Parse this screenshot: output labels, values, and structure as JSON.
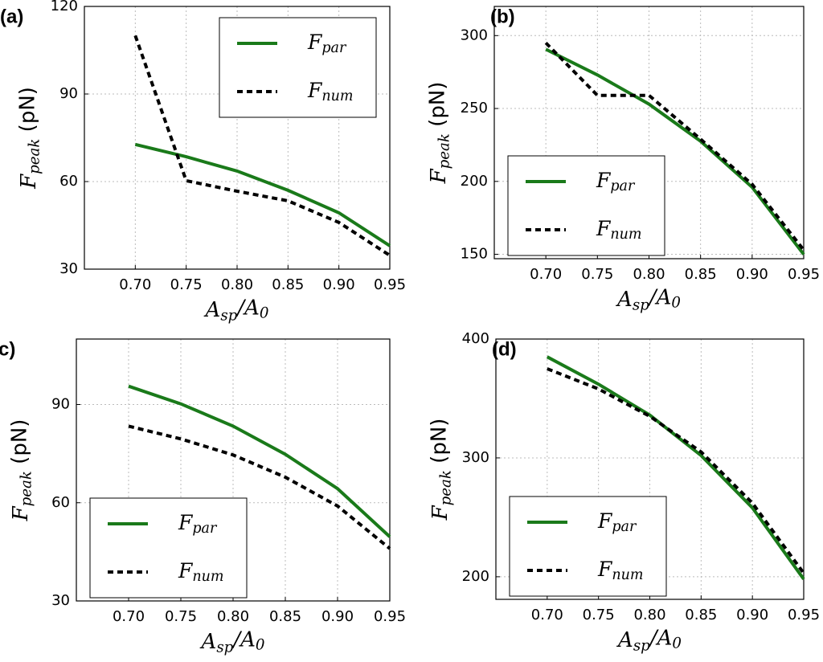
{
  "chart_data": [
    {
      "type": "line",
      "panel_label": "(a)",
      "xlabel": "Asp/A0",
      "ylabel": "Fpeak (pN)",
      "x": [
        0.7,
        0.75,
        0.8,
        0.85,
        0.9,
        0.95
      ],
      "xlim": [
        0.65,
        0.95
      ],
      "xticks": [
        {
          "value": 0.7,
          "label": "0.70"
        },
        0.75,
        {
          "value": 0.8,
          "label": "0.80"
        },
        0.85,
        {
          "value": 0.9,
          "label": "0.90"
        },
        0.95
      ],
      "ylim": [
        30,
        120
      ],
      "yticks": [
        30,
        60,
        90,
        120
      ],
      "grid": true,
      "legend": "upper right",
      "series": [
        {
          "name": "Fpar",
          "color": "#1a7a1a",
          "linestyle": "solid",
          "values": [
            72.7,
            68.5,
            63.6,
            57,
            49.3,
            38
          ]
        },
        {
          "name": "Fnum",
          "color": "#000000",
          "linestyle": "dashed",
          "values": [
            110,
            60.3,
            56.7,
            53.4,
            46,
            34.7
          ]
        }
      ]
    },
    {
      "type": "line",
      "panel_label": "(b)",
      "xlabel": "Asp/A0",
      "ylabel": "Fpeak (pN)",
      "x": [
        0.7,
        0.75,
        0.8,
        0.85,
        0.9,
        0.95
      ],
      "xlim": [
        0.65,
        0.95
      ],
      "xticks": [
        {
          "value": 0.7,
          "label": "0.70"
        },
        0.75,
        {
          "value": 0.8,
          "label": "0.80"
        },
        0.85,
        {
          "value": 0.9,
          "label": "0.90"
        },
        0.95
      ],
      "ylim": [
        147,
        320
      ],
      "yticks": [
        150,
        200,
        250,
        300
      ],
      "grid": true,
      "legend": "lower left",
      "series": [
        {
          "name": "Fpar",
          "color": "#1a7a1a",
          "linestyle": "solid",
          "values": [
            290.6,
            273,
            253,
            227.6,
            196,
            150
          ]
        },
        {
          "name": "Fnum",
          "color": "#000000",
          "linestyle": "dashed",
          "values": [
            295,
            259,
            259,
            229,
            198,
            153
          ]
        }
      ]
    },
    {
      "type": "line",
      "panel_label": "(c)",
      "xlabel": "Asp/A0",
      "ylabel": "Fpeak (pN)",
      "x": [
        0.7,
        0.75,
        0.8,
        0.85,
        0.9,
        0.95
      ],
      "xlim": [
        0.65,
        0.95
      ],
      "xticks": [
        {
          "value": 0.7,
          "label": "0.70"
        },
        0.75,
        {
          "value": 0.8,
          "label": "0.80"
        },
        0.85,
        {
          "value": 0.9,
          "label": "0.90"
        },
        0.95
      ],
      "ylim": [
        30,
        110
      ],
      "yticks": [
        30,
        60,
        90
      ],
      "grid": true,
      "legend": "lower left",
      "series": [
        {
          "name": "Fpar",
          "color": "#1a7a1a",
          "linestyle": "solid",
          "values": [
            95.6,
            90.2,
            83.4,
            74.8,
            64.3,
            49.6
          ]
        },
        {
          "name": "Fnum",
          "color": "#000000",
          "linestyle": "dashed",
          "values": [
            83.4,
            79.5,
            74.6,
            67.8,
            59,
            46
          ]
        }
      ]
    },
    {
      "type": "line",
      "panel_label": "(d)",
      "xlabel": "Asp/A0",
      "ylabel": "Fpeak (pN)",
      "x": [
        0.7,
        0.75,
        0.8,
        0.85,
        0.9,
        0.95
      ],
      "xlim": [
        0.65,
        0.95
      ],
      "xticks": [
        {
          "value": 0.7,
          "label": "0.70"
        },
        0.75,
        {
          "value": 0.8,
          "label": "0.80"
        },
        0.85,
        {
          "value": 0.9,
          "label": "0.90"
        },
        0.95
      ],
      "ylim": [
        181,
        400
      ],
      "yticks": [
        200,
        300,
        400
      ],
      "grid": true,
      "legend": "lower left",
      "series": [
        {
          "name": "Fpar",
          "color": "#1a7a1a",
          "linestyle": "solid",
          "values": [
            385,
            362,
            336,
            302,
            258,
            198
          ]
        },
        {
          "name": "Fnum",
          "color": "#000000",
          "linestyle": "dashed",
          "values": [
            375,
            358,
            335,
            305,
            262,
            203
          ]
        }
      ]
    }
  ]
}
